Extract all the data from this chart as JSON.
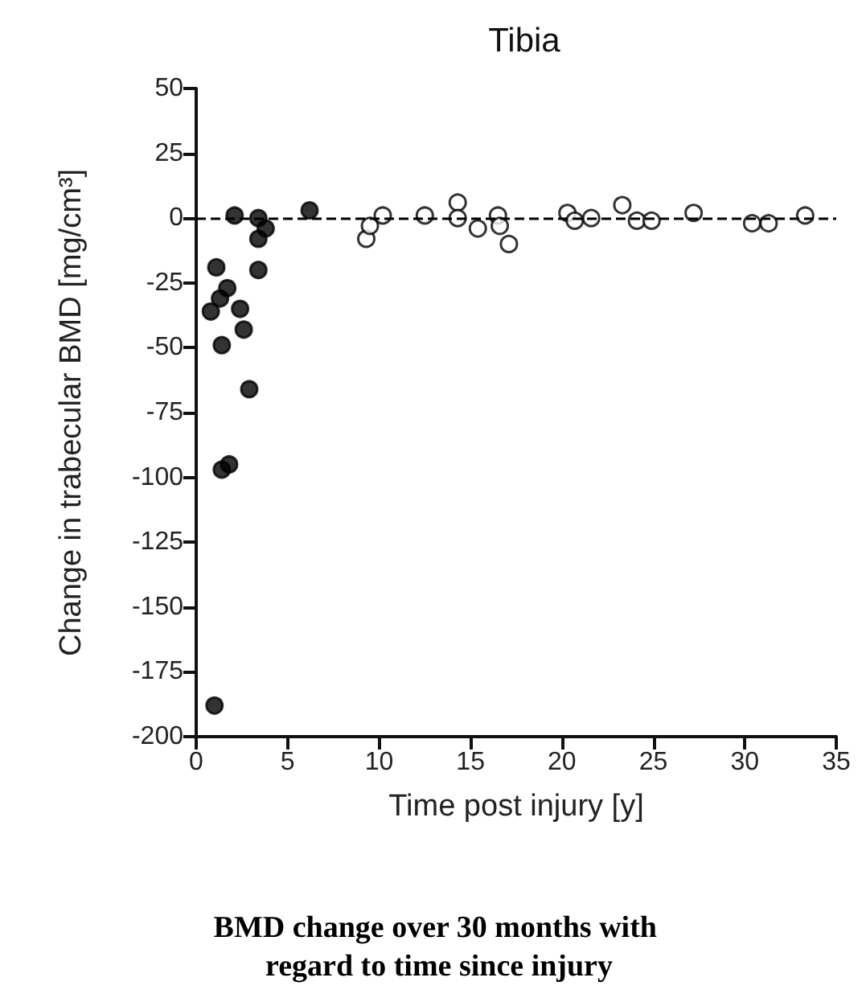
{
  "chart_data": {
    "type": "scatter",
    "title": "Tibia",
    "xlabel": "Time post injury [y]",
    "ylabel": "Change in trabecular BMD [mg/cm³]",
    "annotations": [
      "BMD change over 30 months with regard to time since injury"
    ],
    "xlim": [
      0,
      35
    ],
    "xticks": [
      0,
      5,
      10,
      15,
      20,
      25,
      30,
      35
    ],
    "ylim": [
      -200,
      50
    ],
    "yticks": [
      -200,
      -175,
      -150,
      -125,
      -100,
      -75,
      -50,
      -25,
      0,
      25,
      50
    ],
    "grid": false,
    "marker": "circle",
    "ref_lines": [
      {
        "axis": "y",
        "value": 0,
        "label": null,
        "color": "#000000",
        "line_style": "dashed"
      }
    ],
    "series": [
      {
        "color": "#000000",
        "x": [
          2.1,
          3.4,
          3.8,
          3.4,
          6.2,
          1.1,
          3.4,
          1.7,
          1.3,
          0.8,
          2.4,
          2.6,
          1.4,
          2.9,
          1.4,
          1.8,
          1.0
        ],
        "values": [
          1,
          0,
          -4,
          -8,
          3,
          -19,
          -20,
          -27,
          -31,
          -36,
          -35,
          -43,
          -49,
          -66,
          -97,
          -95,
          -188
        ]
      },
      {
        "color": "#ffffff",
        "x": [
          9.3,
          9.5,
          10.2,
          12.5,
          14.3,
          14.3,
          15.4,
          16.5,
          16.6,
          17.1,
          20.3,
          20.7,
          21.6,
          23.3,
          24.1,
          24.9,
          27.2,
          30.4,
          31.3,
          33.3
        ],
        "values": [
          -8,
          -3,
          1,
          1,
          6,
          0,
          -4,
          1,
          -3,
          -10,
          2,
          -1,
          0,
          5,
          -1,
          -1,
          2,
          -2,
          -2,
          1
        ]
      }
    ]
  }
}
